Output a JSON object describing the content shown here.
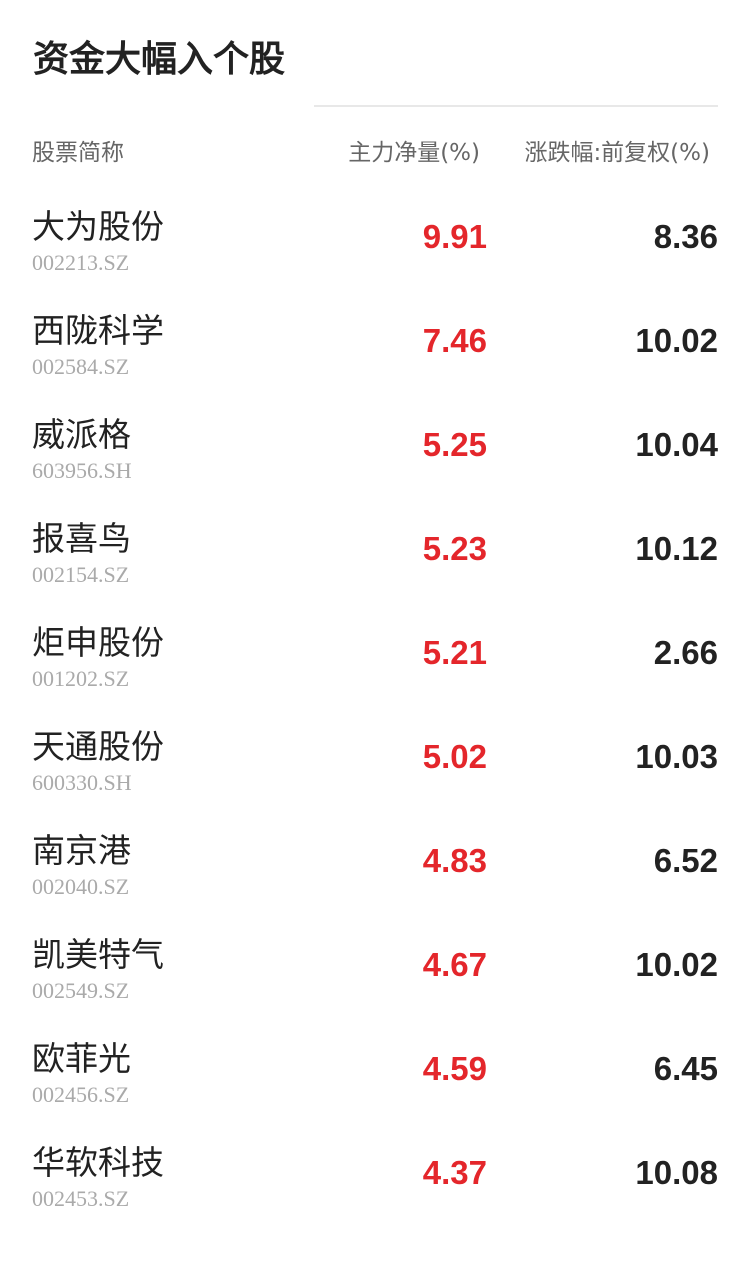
{
  "title": "资金大幅入个股",
  "colors": {
    "positive": "#e4262b",
    "text": "#222222",
    "muted": "#aaaaaa"
  },
  "headers": {
    "name": "股票简称",
    "main_flow": "主力净量(%)",
    "change": "涨跌幅:前复权(%)"
  },
  "rows": [
    {
      "name": "大为股份",
      "code": "002213.SZ",
      "main_flow": "9.91",
      "change": "8.36"
    },
    {
      "name": "西陇科学",
      "code": "002584.SZ",
      "main_flow": "7.46",
      "change": "10.02"
    },
    {
      "name": "威派格",
      "code": "603956.SH",
      "main_flow": "5.25",
      "change": "10.04"
    },
    {
      "name": "报喜鸟",
      "code": "002154.SZ",
      "main_flow": "5.23",
      "change": "10.12"
    },
    {
      "name": "炬申股份",
      "code": "001202.SZ",
      "main_flow": "5.21",
      "change": "2.66"
    },
    {
      "name": "天通股份",
      "code": "600330.SH",
      "main_flow": "5.02",
      "change": "10.03"
    },
    {
      "name": "南京港",
      "code": "002040.SZ",
      "main_flow": "4.83",
      "change": "6.52"
    },
    {
      "name": "凯美特气",
      "code": "002549.SZ",
      "main_flow": "4.67",
      "change": "10.02"
    },
    {
      "name": "欧菲光",
      "code": "002456.SZ",
      "main_flow": "4.59",
      "change": "6.45"
    },
    {
      "name": "华软科技",
      "code": "002453.SZ",
      "main_flow": "4.37",
      "change": "10.08"
    }
  ]
}
